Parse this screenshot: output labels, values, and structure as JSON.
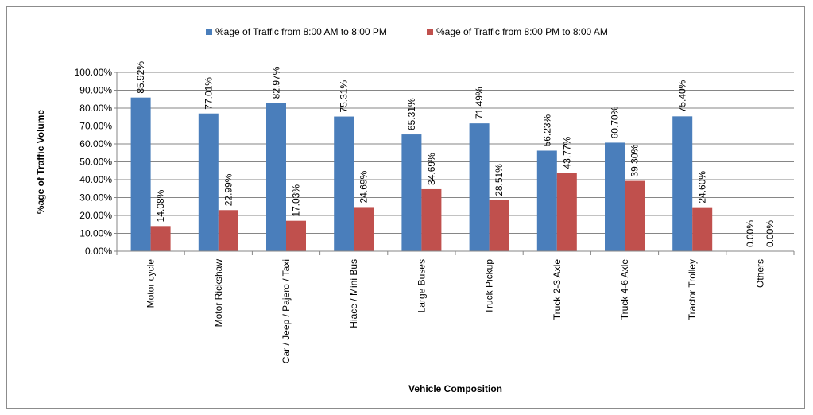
{
  "chart_data": {
    "type": "bar",
    "xlabel": "Vehicle Composition",
    "ylabel": "%age of Traffic Volume",
    "ylim": [
      0,
      100
    ],
    "yticks": [
      "0.00%",
      "10.00%",
      "20.00%",
      "30.00%",
      "40.00%",
      "50.00%",
      "60.00%",
      "70.00%",
      "80.00%",
      "90.00%",
      "100.00%"
    ],
    "grid": true,
    "legend_position": "top",
    "categories": [
      "Motor cycle",
      "Motor Rickshaw",
      "Car / Jeep / Pajero / Taxi",
      "Hiace / Mini Bus",
      "Large Buses",
      "Truck Pickup",
      "Truck 2-3 Axle",
      "Truck 4-6 Axle",
      "Tractor Trolley",
      "Others"
    ],
    "series": [
      {
        "name": "%age of Traffic from 8:00 AM to 8:00 PM",
        "color": "#4a7ebb",
        "values": [
          85.92,
          77.01,
          82.97,
          75.31,
          65.31,
          71.49,
          56.23,
          60.7,
          75.4,
          0.0
        ],
        "labels": [
          "85.92%",
          "77.01%",
          "82.97%",
          "75.31%",
          "65.31%",
          "71.49%",
          "56.23%",
          "60.70%",
          "75.40%",
          "0.00%"
        ]
      },
      {
        "name": "%age of Traffic from 8:00 PM to 8:00 AM",
        "color": "#c0504d",
        "values": [
          14.08,
          22.99,
          17.03,
          24.69,
          34.69,
          28.51,
          43.77,
          39.3,
          24.6,
          0.0
        ],
        "labels": [
          "14.08%",
          "22.99%",
          "17.03%",
          "24.69%",
          "34.69%",
          "28.51%",
          "43.77%",
          "39.30%",
          "24.60%",
          "0.00%"
        ]
      }
    ]
  }
}
